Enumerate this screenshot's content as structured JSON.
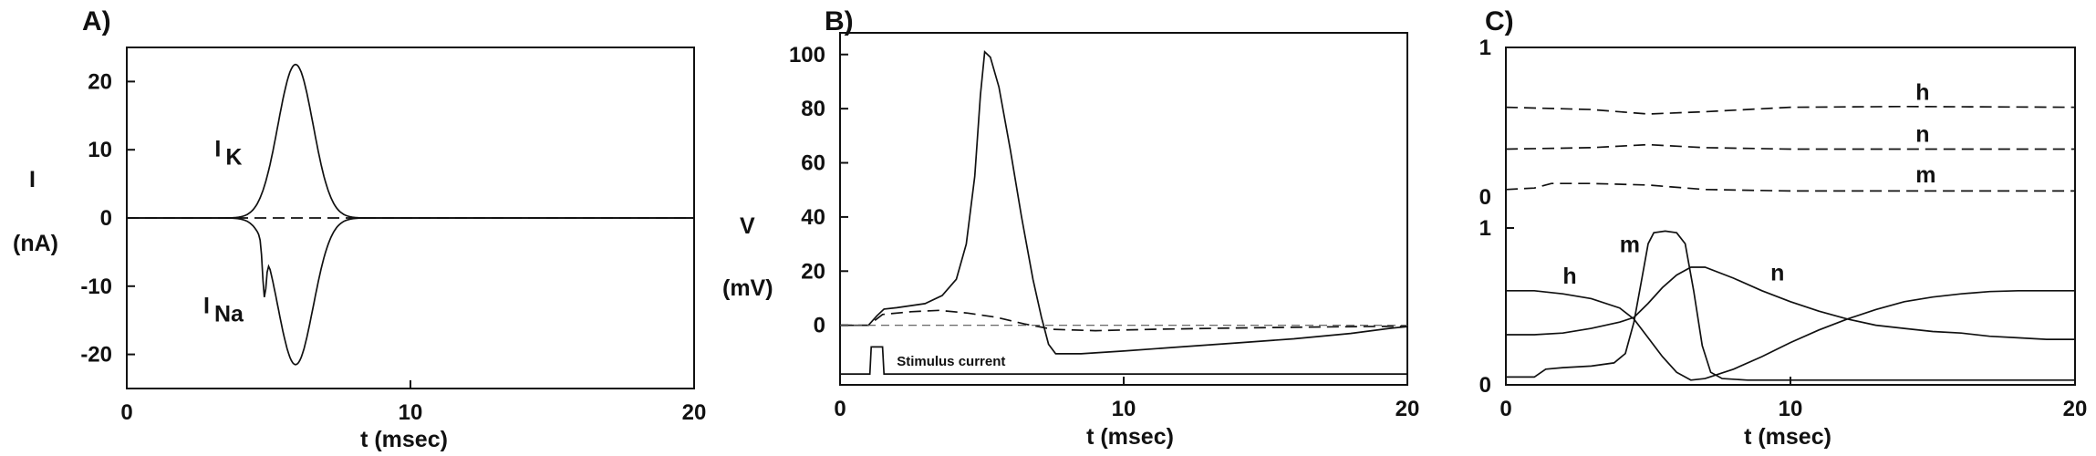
{
  "chart_data": [
    {
      "type": "line",
      "panel_label": "A)",
      "xlabel": "t (msec)",
      "ylabel": "I",
      "ylabel_unit": "(nA)",
      "xlim": [
        0,
        20
      ],
      "ylim": [
        -25,
        25
      ],
      "xticks": [
        0,
        10,
        20
      ],
      "yticks": [
        -20,
        -10,
        0,
        10,
        20
      ],
      "series": [
        {
          "name": "I_K",
          "style": "solid",
          "curve": "gauss",
          "peak": 22.5,
          "center": 5.95,
          "width": 0.62,
          "onset": 4.4
        },
        {
          "name": "I_Na",
          "style": "solid",
          "curve": "gauss",
          "peak": -21.5,
          "center": 5.95,
          "width": 0.62,
          "onset": 4.4,
          "notch_at": 4.85,
          "notch_value": -13
        },
        {
          "name": "",
          "style": "dashed",
          "curve": "flat",
          "value": 0
        }
      ],
      "annotations": [
        {
          "text": "I",
          "subscript": "K",
          "x": 3.1,
          "y": 9
        },
        {
          "text": "I",
          "subscript": "Na",
          "x": 2.7,
          "y": -14
        }
      ]
    },
    {
      "type": "line",
      "panel_label": "B)",
      "xlabel": "t (msec)",
      "ylabel": "V",
      "ylabel_unit": "(mV)",
      "xlim": [
        0,
        20
      ],
      "ylim": [
        -22,
        108
      ],
      "xticks": [
        0,
        10,
        20
      ],
      "yticks": [
        0,
        20,
        40,
        60,
        80,
        100
      ],
      "series": [
        {
          "name": "V",
          "style": "solid",
          "points": [
            [
              0,
              0
            ],
            [
              1,
              0
            ],
            [
              1.3,
              3.5
            ],
            [
              1.55,
              6
            ],
            [
              2,
              6.5
            ],
            [
              3,
              8
            ],
            [
              3.6,
              11
            ],
            [
              4.1,
              17
            ],
            [
              4.45,
              30
            ],
            [
              4.75,
              55
            ],
            [
              4.95,
              85
            ],
            [
              5.1,
              101
            ],
            [
              5.3,
              99
            ],
            [
              5.6,
              88
            ],
            [
              6,
              65
            ],
            [
              6.4,
              40
            ],
            [
              6.8,
              17
            ],
            [
              7.1,
              3
            ],
            [
              7.35,
              -7
            ],
            [
              7.6,
              -10.5
            ],
            [
              8.5,
              -10.5
            ],
            [
              10,
              -9.5
            ],
            [
              12,
              -8
            ],
            [
              14,
              -6.5
            ],
            [
              16,
              -5
            ],
            [
              18,
              -3
            ],
            [
              19.5,
              -1
            ],
            [
              20,
              -0.5
            ]
          ]
        },
        {
          "name": "",
          "style": "dashed",
          "points": [
            [
              0,
              0
            ],
            [
              1,
              0
            ],
            [
              1.5,
              4
            ],
            [
              2.5,
              5
            ],
            [
              3.5,
              5.5
            ],
            [
              4.5,
              4.5
            ],
            [
              5.5,
              3
            ],
            [
              6.5,
              0.5
            ],
            [
              7.5,
              -1.5
            ],
            [
              9,
              -2
            ],
            [
              11,
              -1.5
            ],
            [
              14,
              -1
            ],
            [
              17,
              -0.6
            ],
            [
              20,
              -0.3
            ]
          ]
        },
        {
          "name": "",
          "style": "thin-dashed",
          "points": [
            [
              0,
              0
            ],
            [
              20,
              0
            ]
          ]
        },
        {
          "name": "Stimulus current",
          "style": "solid",
          "points": [
            [
              0,
              -18
            ],
            [
              1.05,
              -18
            ],
            [
              1.1,
              -8
            ],
            [
              1.5,
              -8
            ],
            [
              1.55,
              -18
            ],
            [
              20,
              -18
            ]
          ]
        }
      ],
      "annotations": [
        {
          "text": "Stimulus current",
          "x": 2.0,
          "y": -15
        }
      ]
    },
    {
      "type": "line",
      "panel_label": "C)",
      "xlabel": "t (msec)",
      "xlim": [
        0,
        20
      ],
      "xticks": [
        0,
        10,
        20
      ],
      "yticks_upper": [
        0,
        1
      ],
      "yticks_lower": [
        0,
        1
      ],
      "upper_series": [
        {
          "name": "h",
          "style": "dashed",
          "points": [
            [
              0,
              0.6
            ],
            [
              3,
              0.585
            ],
            [
              5,
              0.555
            ],
            [
              7,
              0.57
            ],
            [
              10,
              0.6
            ],
            [
              14,
              0.605
            ],
            [
              20,
              0.6
            ]
          ]
        },
        {
          "name": "n",
          "style": "dashed",
          "points": [
            [
              0,
              0.32
            ],
            [
              3,
              0.33
            ],
            [
              5,
              0.35
            ],
            [
              7,
              0.33
            ],
            [
              10,
              0.32
            ],
            [
              14,
              0.32
            ],
            [
              20,
              0.32
            ]
          ]
        },
        {
          "name": "m",
          "style": "dashed",
          "points": [
            [
              0,
              0.05
            ],
            [
              1,
              0.06
            ],
            [
              1.6,
              0.09
            ],
            [
              3,
              0.09
            ],
            [
              5,
              0.08
            ],
            [
              7,
              0.05
            ],
            [
              10,
              0.04
            ],
            [
              14,
              0.04
            ],
            [
              20,
              0.04
            ]
          ]
        }
      ],
      "lower_series": [
        {
          "name": "h",
          "style": "solid",
          "points": [
            [
              0,
              0.6
            ],
            [
              1,
              0.6
            ],
            [
              2,
              0.58
            ],
            [
              3,
              0.55
            ],
            [
              4,
              0.49
            ],
            [
              4.5,
              0.42
            ],
            [
              5,
              0.3
            ],
            [
              5.5,
              0.18
            ],
            [
              6,
              0.08
            ],
            [
              6.5,
              0.03
            ],
            [
              7,
              0.04
            ],
            [
              8,
              0.1
            ],
            [
              9,
              0.18
            ],
            [
              10,
              0.27
            ],
            [
              11,
              0.35
            ],
            [
              12,
              0.42
            ],
            [
              13,
              0.48
            ],
            [
              14,
              0.53
            ],
            [
              15,
              0.56
            ],
            [
              16,
              0.58
            ],
            [
              17,
              0.595
            ],
            [
              18,
              0.6
            ],
            [
              20,
              0.6
            ]
          ]
        },
        {
          "name": "n",
          "style": "solid",
          "points": [
            [
              0,
              0.32
            ],
            [
              1,
              0.32
            ],
            [
              2,
              0.33
            ],
            [
              3,
              0.36
            ],
            [
              4,
              0.4
            ],
            [
              4.5,
              0.43
            ],
            [
              5,
              0.52
            ],
            [
              5.5,
              0.62
            ],
            [
              6,
              0.7
            ],
            [
              6.5,
              0.75
            ],
            [
              7,
              0.75
            ],
            [
              8,
              0.68
            ],
            [
              9,
              0.6
            ],
            [
              10,
              0.53
            ],
            [
              11,
              0.47
            ],
            [
              12,
              0.42
            ],
            [
              13,
              0.38
            ],
            [
              14,
              0.36
            ],
            [
              15,
              0.34
            ],
            [
              16,
              0.33
            ],
            [
              17,
              0.31
            ],
            [
              18,
              0.3
            ],
            [
              19,
              0.29
            ],
            [
              20,
              0.29
            ]
          ]
        },
        {
          "name": "m",
          "style": "solid",
          "points": [
            [
              0,
              0.05
            ],
            [
              1,
              0.05
            ],
            [
              1.4,
              0.1
            ],
            [
              2,
              0.11
            ],
            [
              3,
              0.12
            ],
            [
              3.8,
              0.14
            ],
            [
              4.2,
              0.2
            ],
            [
              4.5,
              0.4
            ],
            [
              4.8,
              0.7
            ],
            [
              5,
              0.9
            ],
            [
              5.2,
              0.97
            ],
            [
              5.6,
              0.98
            ],
            [
              6,
              0.97
            ],
            [
              6.3,
              0.9
            ],
            [
              6.6,
              0.6
            ],
            [
              6.9,
              0.25
            ],
            [
              7.2,
              0.08
            ],
            [
              7.6,
              0.04
            ],
            [
              8.5,
              0.03
            ],
            [
              10,
              0.03
            ],
            [
              14,
              0.03
            ],
            [
              20,
              0.03
            ]
          ]
        }
      ],
      "annotations": [
        {
          "text": "h",
          "panel": "upper",
          "x": 14.4,
          "y": 0.6
        },
        {
          "text": "n",
          "panel": "upper",
          "x": 14.4,
          "y": 0.32
        },
        {
          "text": "m",
          "panel": "upper",
          "x": 14.4,
          "y": 0.05
        },
        {
          "text": "h",
          "panel": "lower",
          "x": 2.0,
          "y": 0.6
        },
        {
          "text": "m",
          "panel": "lower",
          "x": 4.0,
          "y": 0.8
        },
        {
          "text": "n",
          "panel": "lower",
          "x": 9.3,
          "y": 0.62
        }
      ]
    }
  ]
}
